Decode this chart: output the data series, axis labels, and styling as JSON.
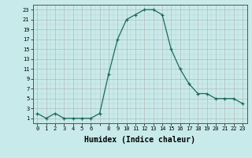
{
  "x": [
    0,
    1,
    2,
    3,
    4,
    5,
    6,
    7,
    8,
    9,
    10,
    11,
    12,
    13,
    14,
    15,
    16,
    17,
    18,
    19,
    20,
    21,
    22,
    23
  ],
  "y": [
    2,
    1,
    2,
    1,
    1,
    1,
    1,
    2,
    10,
    17,
    21,
    22,
    23,
    23,
    22,
    15,
    11,
    8,
    6,
    6,
    5,
    5,
    5,
    4
  ],
  "line_color": "#1a6b5a",
  "marker": "+",
  "marker_size": 3.5,
  "bg_color": "#c8eaea",
  "grid_color_major": "#b0b0b0",
  "grid_color_minor": "#c8d8d8",
  "xlabel": "Humidex (Indice chaleur)",
  "xlabel_fontsize": 7,
  "ylabel_ticks": [
    1,
    3,
    5,
    7,
    9,
    11,
    13,
    15,
    17,
    19,
    21,
    23
  ],
  "xlim": [
    -0.5,
    23.5
  ],
  "ylim": [
    0,
    24
  ],
  "xtick_labels": [
    "0",
    "1",
    "2",
    "3",
    "4",
    "5",
    "6",
    "",
    "8",
    "9",
    "10",
    "11",
    "12",
    "13",
    "14",
    "15",
    "16",
    "17",
    "18",
    "19",
    "20",
    "21",
    "22",
    "23"
  ]
}
